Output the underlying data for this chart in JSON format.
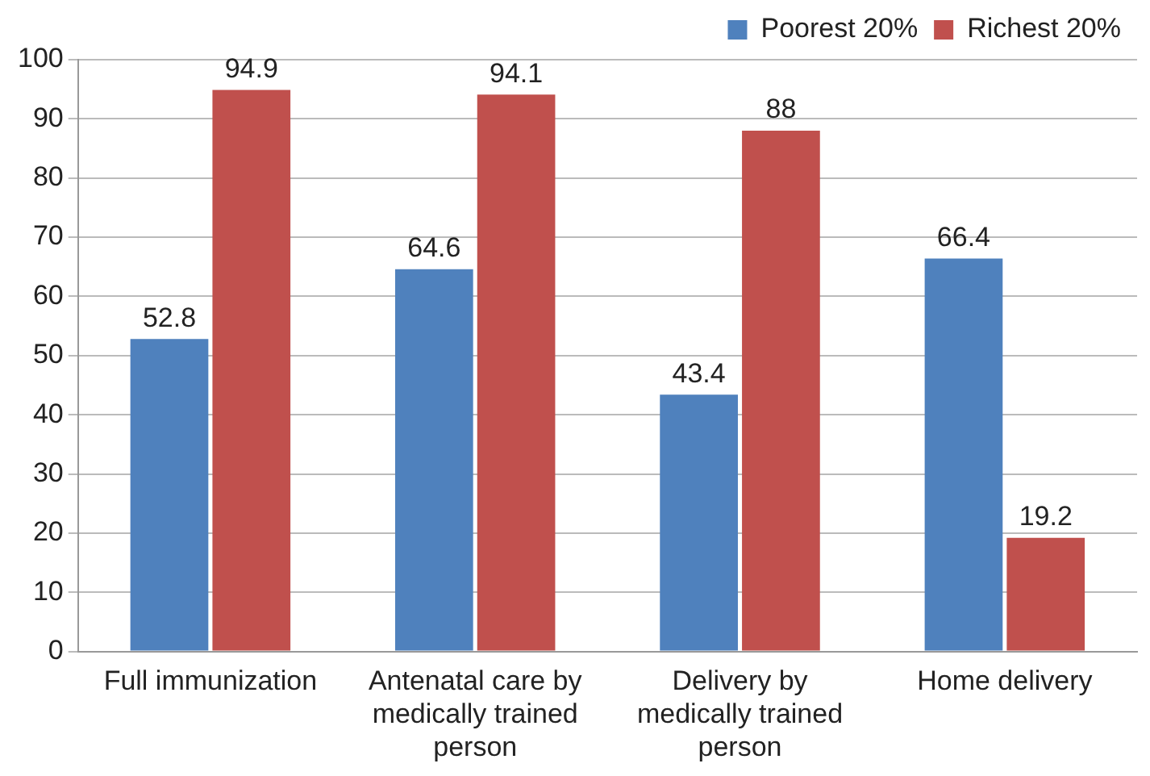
{
  "chart_data": {
    "type": "bar",
    "categories": [
      "Full immunization",
      "Antenatal care by medically trained person",
      "Delivery by medically trained person",
      "Home delivery"
    ],
    "series": [
      {
        "name": "Poorest 20%",
        "color": "#4f81bd",
        "values": [
          52.8,
          64.6,
          43.4,
          66.4
        ]
      },
      {
        "name": "Richest 20%",
        "color": "#c0504d",
        "values": [
          94.9,
          94.1,
          88,
          19.2
        ]
      }
    ],
    "ylim": [
      0,
      100
    ],
    "yticks": [
      0,
      10,
      20,
      30,
      40,
      50,
      60,
      70,
      80,
      90,
      100
    ],
    "grid": "y",
    "legend": "top right",
    "data_labels": true
  }
}
